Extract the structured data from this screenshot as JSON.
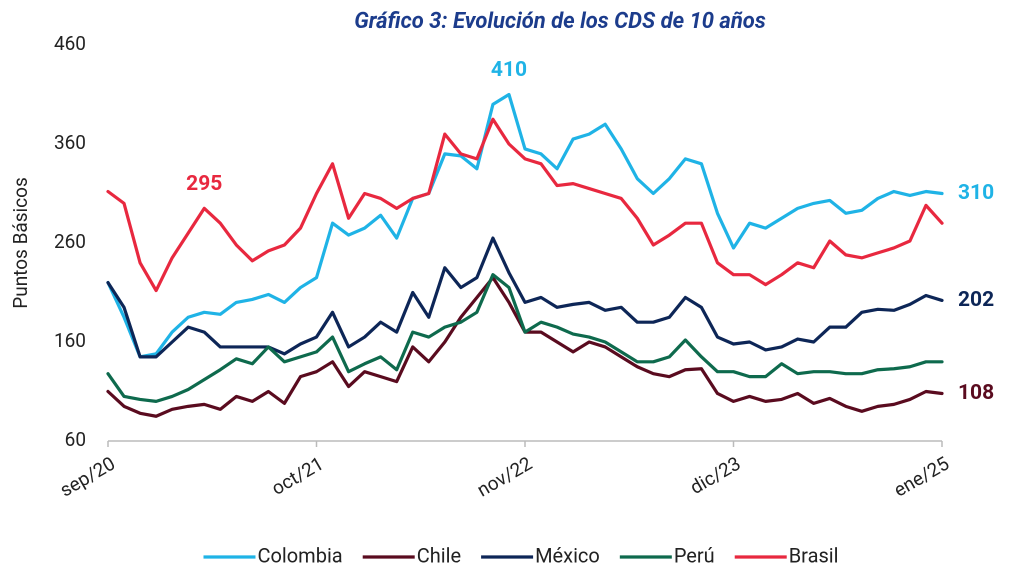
{
  "chart_data": {
    "type": "line",
    "title": "Gráfico 3: Evolución de los CDS de 10 años",
    "y_label": "Puntos Básicos",
    "categories": [
      "sep/20",
      null,
      null,
      null,
      null,
      null,
      null,
      null,
      null,
      null,
      null,
      null,
      null,
      "oct/21",
      null,
      null,
      null,
      null,
      null,
      null,
      null,
      null,
      null,
      null,
      null,
      null,
      "nov/22",
      null,
      null,
      null,
      null,
      null,
      null,
      null,
      null,
      null,
      null,
      null,
      null,
      "dic/23",
      null,
      null,
      null,
      null,
      null,
      null,
      null,
      null,
      null,
      null,
      null,
      null,
      "ene/25"
    ],
    "ylim": [
      60,
      460
    ],
    "yticks": [
      60,
      160,
      260,
      360,
      460
    ],
    "legend": "bottom",
    "series": [
      {
        "name": "Colombia",
        "color": "#1fb3e6",
        "values": [
          220,
          185,
          145,
          148,
          170,
          185,
          190,
          188,
          200,
          203,
          208,
          200,
          215,
          225,
          280,
          268,
          275,
          288,
          265,
          305,
          310,
          350,
          348,
          335,
          400,
          410,
          355,
          350,
          335,
          365,
          370,
          380,
          355,
          325,
          310,
          325,
          345,
          340,
          290,
          255,
          280,
          275,
          285,
          295,
          300,
          303,
          290,
          293,
          305,
          312,
          308,
          312,
          310
        ],
        "value_labels": [
          null,
          null,
          null,
          null,
          null,
          null,
          null,
          null,
          null,
          null,
          null,
          null,
          null,
          null,
          null,
          null,
          null,
          null,
          null,
          null,
          null,
          null,
          null,
          null,
          null,
          "410",
          null,
          null,
          null,
          null,
          null,
          null,
          null,
          null,
          null,
          null,
          null,
          null,
          null,
          null,
          null,
          null,
          null,
          null,
          null,
          null,
          null,
          null,
          null,
          null,
          null,
          null,
          "310"
        ]
      },
      {
        "name": "Chile",
        "color": "#5a0b1f",
        "values": [
          110,
          95,
          88,
          85,
          92,
          95,
          97,
          92,
          105,
          100,
          110,
          98,
          125,
          130,
          140,
          115,
          130,
          125,
          120,
          155,
          140,
          160,
          185,
          205,
          225,
          200,
          170,
          170,
          160,
          150,
          160,
          155,
          145,
          135,
          128,
          125,
          132,
          133,
          108,
          100,
          105,
          100,
          102,
          108,
          98,
          103,
          95,
          90,
          95,
          97,
          102,
          110,
          108
        ],
        "value_labels": [
          null,
          null,
          null,
          null,
          null,
          null,
          null,
          null,
          null,
          null,
          null,
          null,
          null,
          null,
          null,
          null,
          null,
          null,
          null,
          null,
          null,
          null,
          null,
          null,
          null,
          null,
          null,
          null,
          null,
          null,
          null,
          null,
          null,
          null,
          null,
          null,
          null,
          null,
          null,
          null,
          null,
          null,
          null,
          null,
          null,
          null,
          null,
          null,
          null,
          null,
          null,
          null,
          "108"
        ]
      },
      {
        "name": "México",
        "color": "#0d2657",
        "values": [
          220,
          195,
          145,
          145,
          160,
          175,
          170,
          155,
          155,
          155,
          155,
          148,
          158,
          165,
          190,
          155,
          165,
          180,
          170,
          210,
          185,
          235,
          215,
          225,
          265,
          230,
          200,
          205,
          195,
          198,
          200,
          192,
          195,
          180,
          180,
          185,
          205,
          195,
          165,
          158,
          160,
          152,
          155,
          163,
          160,
          175,
          175,
          190,
          193,
          192,
          198,
          207,
          202
        ],
        "value_labels": [
          null,
          null,
          null,
          null,
          null,
          null,
          null,
          null,
          null,
          null,
          null,
          null,
          null,
          null,
          null,
          null,
          null,
          null,
          null,
          null,
          null,
          null,
          null,
          null,
          null,
          null,
          null,
          null,
          null,
          null,
          null,
          null,
          null,
          null,
          null,
          null,
          null,
          null,
          null,
          null,
          null,
          null,
          null,
          null,
          null,
          null,
          null,
          null,
          null,
          null,
          null,
          null,
          "202"
        ]
      },
      {
        "name": "Perú",
        "color": "#0e6a4d",
        "values": [
          128,
          105,
          102,
          100,
          105,
          112,
          122,
          132,
          143,
          138,
          155,
          140,
          145,
          150,
          165,
          130,
          138,
          145,
          132,
          170,
          165,
          175,
          180,
          190,
          228,
          215,
          170,
          180,
          175,
          168,
          165,
          160,
          150,
          140,
          140,
          145,
          162,
          145,
          130,
          130,
          125,
          125,
          138,
          128,
          130,
          130,
          128,
          128,
          132,
          133,
          135,
          140,
          140
        ]
      },
      {
        "name": "Brasil",
        "color": "#e8283f",
        "values": [
          312,
          300,
          240,
          212,
          245,
          270,
          295,
          280,
          258,
          242,
          252,
          258,
          275,
          310,
          340,
          285,
          310,
          305,
          295,
          305,
          310,
          370,
          350,
          345,
          385,
          360,
          345,
          340,
          318,
          320,
          315,
          310,
          305,
          285,
          258,
          268,
          280,
          280,
          240,
          228,
          228,
          218,
          228,
          240,
          235,
          262,
          248,
          245,
          250,
          255,
          262,
          298,
          280
        ],
        "value_labels": [
          null,
          null,
          null,
          null,
          null,
          null,
          "295",
          null,
          null,
          null,
          null,
          null,
          null,
          null,
          null,
          null,
          null,
          null,
          null,
          null,
          null,
          null,
          null,
          null,
          null,
          null,
          null,
          null,
          null,
          null,
          null,
          null,
          null,
          null,
          null,
          null,
          null,
          null,
          null,
          null,
          null,
          null,
          null,
          null,
          null,
          null,
          null,
          null,
          null,
          null,
          null,
          null,
          null
        ]
      }
    ]
  }
}
